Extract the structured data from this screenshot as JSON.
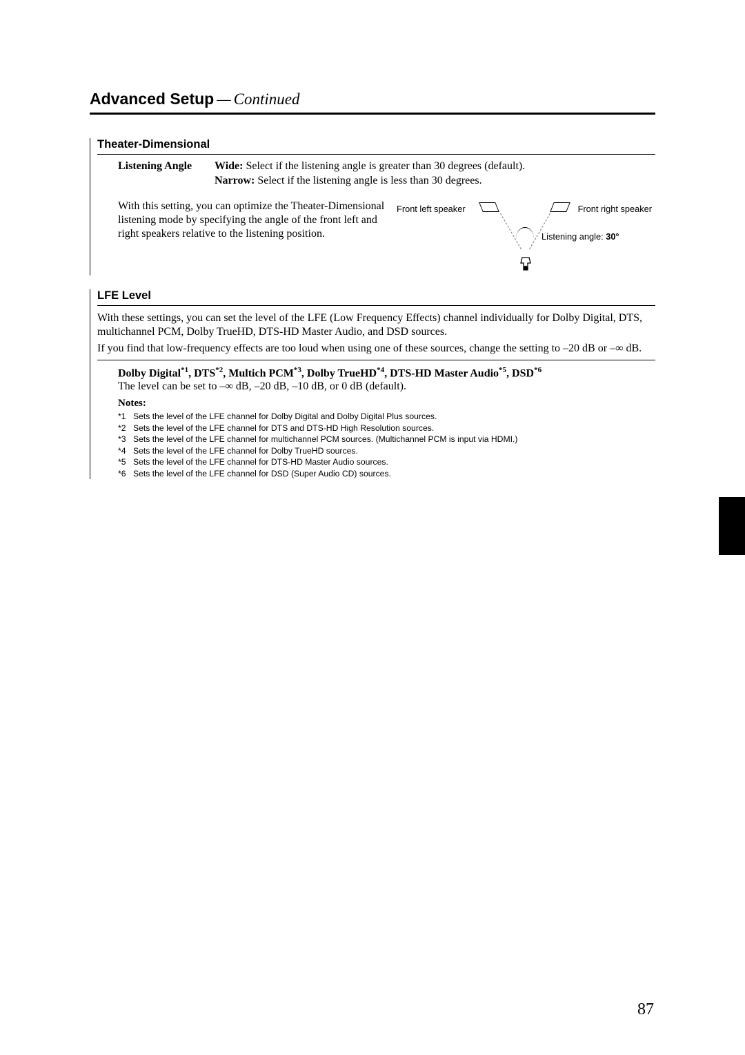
{
  "page": {
    "title_main": "Advanced Setup",
    "title_dash": "—",
    "title_continued": "Continued",
    "page_number": "87"
  },
  "theater_dimensional": {
    "heading": "Theater-Dimensional",
    "listening_angle_label": "Listening Angle",
    "wide_label": "Wide:",
    "wide_text": " Select if the listening angle is greater than 30 degrees (default).",
    "narrow_label": "Narrow:",
    "narrow_text": " Select if the listening angle is less than 30 degrees.",
    "body": "With this setting, you can optimize the Theater-Dimensional listening mode by specifying the angle of the front left and right speakers relative to the listening position.",
    "diagram": {
      "front_left": "Front left speaker",
      "front_right": "Front right speaker",
      "angle_prefix": "Listening angle: ",
      "angle_value": "30°"
    }
  },
  "lfe": {
    "heading": "LFE Level",
    "para1": "With these settings, you can set the level of the LFE (Low Frequency Effects) channel individually for Dolby Digital, DTS, multichannel PCM, Dolby TrueHD, DTS-HD Master Audio, and DSD sources.",
    "para2_pre": "If you find that low-frequency effects are too loud when using one of these sources, change the setting to –20 dB or –",
    "para2_inf": "∞",
    "para2_post": " dB.",
    "formats": {
      "items": [
        {
          "name": "Dolby Digital",
          "tag": "*1"
        },
        {
          "name": "DTS",
          "tag": "*2"
        },
        {
          "name": "Multich PCM",
          "tag": "*3"
        },
        {
          "name": "Dolby TrueHD",
          "tag": "*4"
        },
        {
          "name": "DTS-HD Master Audio",
          "tag": "*5"
        },
        {
          "name": "DSD",
          "tag": "*6"
        }
      ]
    },
    "level_pre": "The level can be set to –",
    "level_inf": "∞",
    "level_post": " dB, –20 dB, –10 dB, or 0 dB (default).",
    "notes_label": "Notes:",
    "notes": [
      {
        "tag": "*1",
        "text": "Sets the level of the LFE channel for Dolby Digital and Dolby Digital Plus sources."
      },
      {
        "tag": "*2",
        "text": "Sets the level of the LFE channel for DTS and DTS-HD High Resolution sources."
      },
      {
        "tag": "*3",
        "text": "Sets the level of the LFE channel for multichannel PCM sources. (Multichannel PCM is input via HDMI.)"
      },
      {
        "tag": "*4",
        "text": "Sets the level of the LFE channel for Dolby TrueHD sources."
      },
      {
        "tag": "*5",
        "text": "Sets the level of the LFE channel for DTS-HD Master Audio sources."
      },
      {
        "tag": "*6",
        "text": "Sets the level of the LFE channel for DSD (Super Audio CD) sources."
      }
    ]
  },
  "style": {
    "page_bg": "#ffffff",
    "text_color": "#000000",
    "tab_color": "#000000"
  }
}
